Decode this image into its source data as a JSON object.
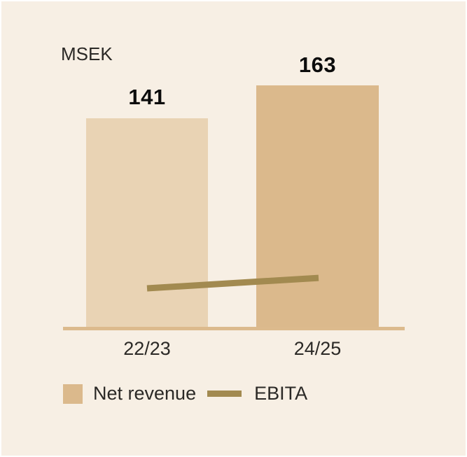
{
  "chart_data": {
    "type": "bar",
    "title": "",
    "unit_label": "MSEK",
    "categories": [
      "22/23",
      "24/25"
    ],
    "series": [
      {
        "name": "Net revenue",
        "type": "bar",
        "values": [
          141,
          163
        ],
        "data_labels": [
          "141",
          "163"
        ]
      },
      {
        "name": "EBITA",
        "type": "line",
        "values": [
          26,
          33
        ],
        "note": "values estimated from line position; no numeric labels shown in chart"
      }
    ],
    "ylim": [
      0,
      170
    ],
    "grid": false,
    "legend_position": "bottom"
  },
  "legend": {
    "items": [
      {
        "label": "Net revenue",
        "swatch": "square"
      },
      {
        "label": "EBITA",
        "swatch": "line"
      }
    ]
  },
  "colors": {
    "page_border": "#ffffff",
    "background": "#f7efe4",
    "net_revenue_2223": "#e9d3b4",
    "net_revenue_2425": "#dbb98c",
    "axis_line": "#dcba8d",
    "ebita_line": "#a28a50",
    "label_text": "#2b2926",
    "value_text": "#0c0c0c"
  }
}
